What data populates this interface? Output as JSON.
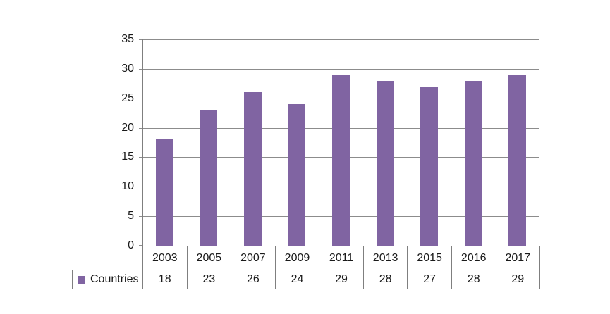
{
  "chart_data": {
    "type": "bar",
    "categories": [
      "2003",
      "2005",
      "2007",
      "2009",
      "2011",
      "2013",
      "2015",
      "2016",
      "2017"
    ],
    "series": [
      {
        "name": "Countries",
        "values": [
          18,
          23,
          26,
          24,
          29,
          28,
          27,
          28,
          29
        ]
      }
    ],
    "xlabel": "",
    "ylabel": "",
    "ylim": [
      0,
      35
    ],
    "yticks": [
      0,
      5,
      10,
      15,
      20,
      25,
      30,
      35
    ],
    "grid": true,
    "legend_position": "data-table-left",
    "data_table_shown": true,
    "colors": {
      "bar": "#8064A2",
      "gridline": "#8c8c8c",
      "table_border": "#7f7f7f",
      "text": "#1a1a1a",
      "background": "#ffffff"
    }
  }
}
